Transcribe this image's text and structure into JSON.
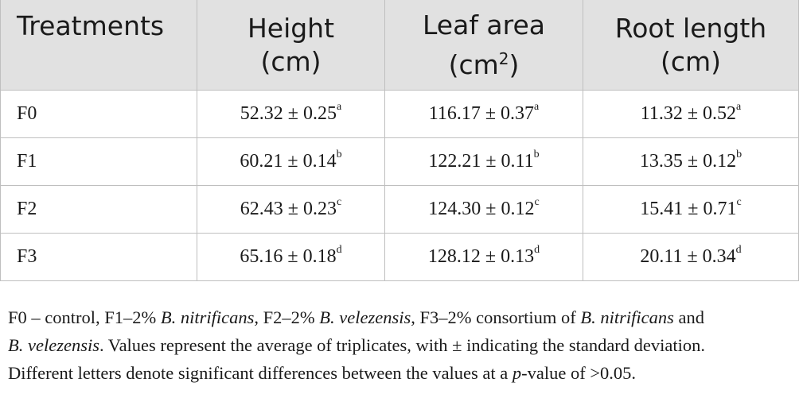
{
  "table": {
    "headers": [
      {
        "line1": "Treatments",
        "line2": "",
        "sup": "",
        "line2_tail": ""
      },
      {
        "line1": "Height",
        "line2": "(cm)",
        "sup": "",
        "line2_tail": ""
      },
      {
        "line1": "Leaf area",
        "line2": "(cm",
        "sup": "2",
        "line2_tail": ")"
      },
      {
        "line1": "Root length",
        "line2": "(cm)",
        "sup": "",
        "line2_tail": ""
      }
    ],
    "rows": [
      {
        "treatment": "F0",
        "height": "52.32 ± 0.25",
        "height_sig": "a",
        "leaf": "116.17 ± 0.37",
        "leaf_sig": "a",
        "root": "11.32 ± 0.52",
        "root_sig": "a"
      },
      {
        "treatment": "F1",
        "height": "60.21 ± 0.14",
        "height_sig": "b",
        "leaf": "122.21 ± 0.11",
        "leaf_sig": "b",
        "root": "13.35 ± 0.12",
        "root_sig": "b"
      },
      {
        "treatment": "F2",
        "height": "62.43 ± 0.23",
        "height_sig": "c",
        "leaf": "124.30 ± 0.12",
        "leaf_sig": "c",
        "root": "15.41 ± 0.71",
        "root_sig": "c"
      },
      {
        "treatment": "F3",
        "height": "65.16 ± 0.18",
        "height_sig": "d",
        "leaf": "128.12 ± 0.13",
        "leaf_sig": "d",
        "root": "20.11 ± 0.34",
        "root_sig": "d"
      }
    ]
  },
  "footnote": {
    "l1_a": "F0 – control, F1–2% ",
    "l1_b": "B. nitrificans",
    "l1_c": ", F2–2% ",
    "l1_d": "B. velezensis",
    "l1_e": ", F3–2% consortium of ",
    "l1_f": "B. nitrificans",
    "l1_g": " and",
    "l2_a": "B. velezensis",
    "l2_b": ". Values represent the average of triplicates, with ± indicating the standard deviation.",
    "l3_a": "Different letters denote significant differences between the values at a ",
    "l3_b": "p",
    "l3_c": "-value of >0.05."
  },
  "colors": {
    "header_bg": "#e1e1e1",
    "border": "#bfbfbf",
    "text": "#1a1a1a"
  }
}
